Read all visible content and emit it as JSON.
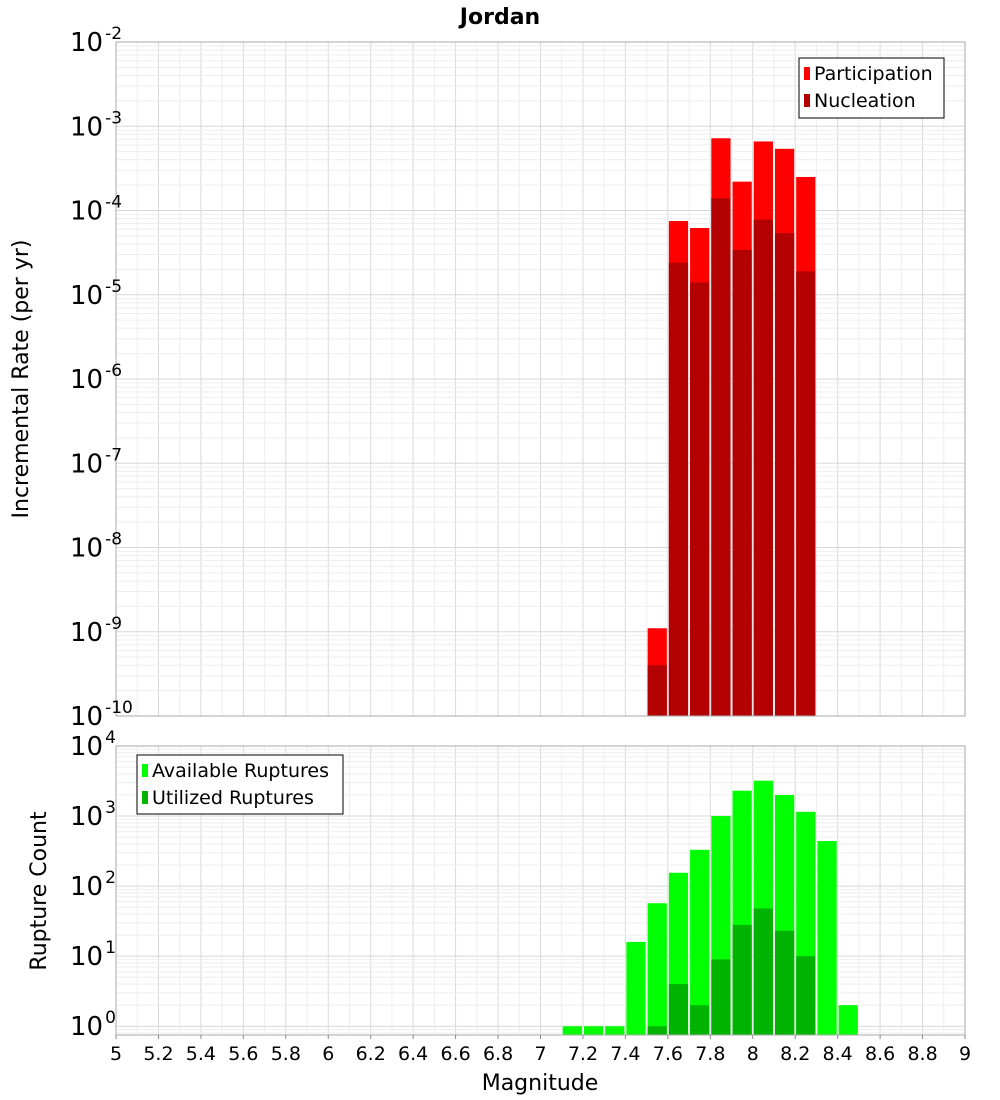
{
  "chart_data": [
    {
      "type": "bar",
      "title": "Jordan",
      "xlabel": "",
      "ylabel": "Incremental Rate (per yr)",
      "yscale": "log",
      "ylim": [
        1e-10,
        0.01
      ],
      "xlim": [
        5,
        9
      ],
      "bin_width": 0.1,
      "grid": true,
      "legend_position": "top-right",
      "y_tick_exponents": [
        "-2",
        "-3",
        "-4",
        "-5",
        "-6",
        "-7",
        "-8",
        "-9",
        "-10"
      ],
      "series": [
        {
          "name": "Participation",
          "color": "#ff0000",
          "x": [
            7.55,
            7.65,
            7.75,
            7.85,
            7.95,
            8.05,
            8.15,
            8.25
          ],
          "values": [
            1.1e-09,
            7.5e-05,
            6.2e-05,
            0.00072,
            0.00022,
            0.00066,
            0.00054,
            0.00025
          ]
        },
        {
          "name": "Nucleation",
          "color": "#b30000",
          "x": [
            7.55,
            7.65,
            7.75,
            7.85,
            7.95,
            8.05,
            8.15,
            8.25
          ],
          "values": [
            4e-10,
            2.4e-05,
            1.4e-05,
            0.00014,
            3.4e-05,
            7.8e-05,
            5.4e-05,
            1.9e-05
          ]
        }
      ]
    },
    {
      "type": "bar",
      "title": "",
      "xlabel": "Magnitude",
      "ylabel": "Rupture Count",
      "yscale": "log",
      "ylim": [
        0.75,
        10000
      ],
      "xlim": [
        5,
        9
      ],
      "bin_width": 0.1,
      "grid": true,
      "legend_position": "top-left",
      "y_tick_exponents": [
        "4",
        "3",
        "2",
        "1",
        "0"
      ],
      "x_ticks": [
        "5",
        "5.2",
        "5.4",
        "5.6",
        "5.8",
        "6",
        "6.2",
        "6.4",
        "6.6",
        "6.8",
        "7",
        "7.2",
        "7.4",
        "7.6",
        "7.8",
        "8",
        "8.2",
        "8.4",
        "8.6",
        "8.8",
        "9"
      ],
      "series": [
        {
          "name": "Available Ruptures",
          "color": "#00ff00",
          "x": [
            7.15,
            7.25,
            7.35,
            7.45,
            7.55,
            7.65,
            7.75,
            7.85,
            7.95,
            8.05,
            8.15,
            8.25,
            8.35,
            8.45
          ],
          "values": [
            1,
            1,
            1,
            16,
            57,
            155,
            330,
            1000,
            2300,
            3200,
            2000,
            1150,
            440,
            2
          ]
        },
        {
          "name": "Utilized Ruptures",
          "color": "#00b300",
          "x": [
            7.55,
            7.65,
            7.75,
            7.85,
            7.95,
            8.05,
            8.15,
            8.25
          ],
          "values": [
            1,
            4,
            2,
            9,
            28,
            48,
            23,
            10
          ]
        }
      ]
    }
  ]
}
